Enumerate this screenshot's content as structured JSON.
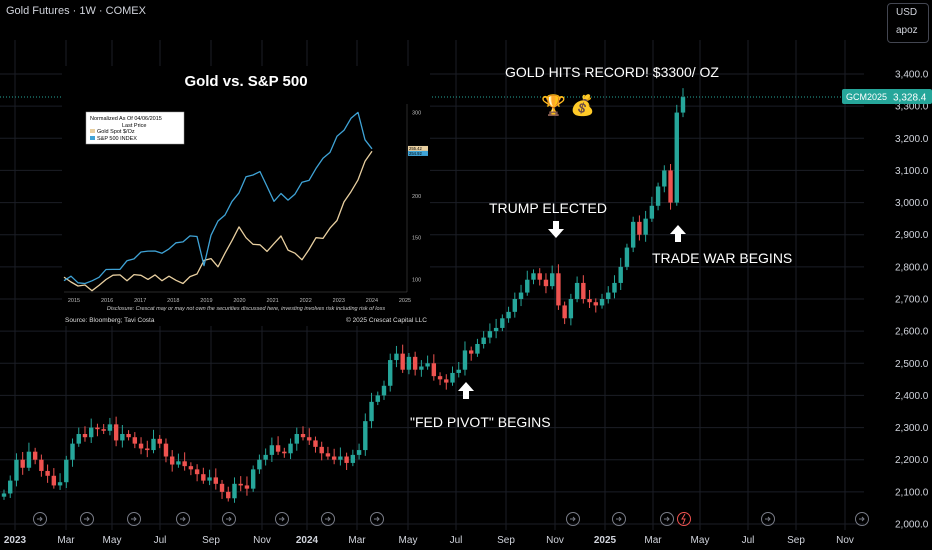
{
  "header": {
    "title": "Gold Futures · 1W · COMEX"
  },
  "currency": {
    "code": "USD",
    "sub": "apoz"
  },
  "price_tag": {
    "symbol": "GCM2025",
    "price": "3,328.4"
  },
  "annotations": {
    "record": "GOLD HITS RECORD! $3300/ OZ",
    "trump": "TRUMP ELECTED",
    "fed": "\"FED PIVOT\" BEGINS",
    "trade_war": "TRADE WAR BEGINS",
    "trophy_icon": "🏆",
    "moneybag_icon": "💰"
  },
  "colors": {
    "up": "#26a69a",
    "down": "#ef5350",
    "accent": "#26a69a",
    "bg": "#000000",
    "grid": "#1b1e26",
    "text": "#d1d4dc"
  },
  "inset": {
    "title": "Gold vs. S&P 500",
    "legend_title": "Normalized As Of 04/06/2015",
    "legend_sub": "Last Price",
    "disclosure": "Disclosure: Crescat may or may not own the securities discussed here, investing involves risk including risk of loss",
    "source": "Source: Bloomberg; Tavi Costa",
    "copyright": "© 2025 Crescat Capital LLC"
  },
  "chart_data": [
    {
      "type": "candlestick",
      "title": "Gold Futures · 1W · COMEX",
      "y_ticks": [
        2000,
        2100,
        2200,
        2300,
        2400,
        2500,
        2600,
        2700,
        2800,
        2900,
        3000,
        3100,
        3200,
        3300,
        3400
      ],
      "y_tick_labels": [
        "2,000.0",
        "2,100.0",
        "2,200.0",
        "2,300.0",
        "2,400.0",
        "2,500.0",
        "2,600.0",
        "2,700.0",
        "2,800.0",
        "2,900.0",
        "3,000.0",
        "3,100.0",
        "3,200.0",
        "3,300.0",
        "3,400.0"
      ],
      "ylim": [
        2000,
        3430
      ],
      "x_labels": [
        "2023",
        "Mar",
        "May",
        "Jul",
        "Sep",
        "Nov",
        "2024",
        "Mar",
        "May",
        "Jul",
        "Sep",
        "Nov",
        "2025",
        "Mar",
        "May",
        "Jul",
        "Sep",
        "Nov"
      ],
      "last_price": 3328.4,
      "closes": [
        2095,
        2135,
        2200,
        2175,
        2225,
        2200,
        2165,
        2150,
        2120,
        2130,
        2200,
        2250,
        2280,
        2270,
        2300,
        2295,
        2290,
        2310,
        2260,
        2280,
        2270,
        2250,
        2235,
        2230,
        2265,
        2250,
        2210,
        2185,
        2195,
        2180,
        2170,
        2155,
        2135,
        2145,
        2125,
        2100,
        2080,
        2125,
        2120,
        2110,
        2170,
        2200,
        2215,
        2245,
        2225,
        2220,
        2250,
        2280,
        2270,
        2260,
        2240,
        2220,
        2210,
        2200,
        2210,
        2190,
        2215,
        2230,
        2320,
        2380,
        2400,
        2430,
        2510,
        2530,
        2480,
        2520,
        2480,
        2490,
        2500,
        2460,
        2450,
        2440,
        2470,
        2480,
        2540,
        2530,
        2560,
        2580,
        2600,
        2610,
        2640,
        2660,
        2700,
        2720,
        2760,
        2780,
        2760,
        2740,
        2780,
        2680,
        2640,
        2700,
        2750,
        2700,
        2690,
        2680,
        2700,
        2720,
        2750,
        2800,
        2860,
        2940,
        2900,
        2950,
        2990,
        3050,
        3100,
        3000,
        3280,
        3328
      ],
      "events": [
        "\"FED PIVOT\" BEGINS",
        "TRUMP ELECTED",
        "TRADE WAR BEGINS",
        "GOLD HITS RECORD! $3300/ OZ"
      ]
    },
    {
      "type": "line",
      "title": "Gold vs. S&P 500",
      "x_labels": [
        "2015",
        "2016",
        "2017",
        "2018",
        "2019",
        "2020",
        "2021",
        "2022",
        "2023",
        "2024",
        "2025"
      ],
      "y_ticks": [
        100,
        150,
        200,
        250,
        300
      ],
      "ylim": [
        85,
        310
      ],
      "series": [
        {
          "name": "Gold Spot $/Oz",
          "color": "#e8cfa0",
          "last_label": "255.42",
          "values": [
            100,
            97,
            95,
            92,
            88,
            90,
            100,
            108,
            104,
            100,
            103,
            105,
            103,
            104,
            100,
            101,
            99,
            98,
            102,
            108,
            120,
            125,
            118,
            130,
            148,
            160,
            150,
            145,
            140,
            135,
            140,
            152,
            138,
            130,
            125,
            133,
            150,
            152,
            160,
            172,
            190,
            205,
            222,
            240,
            255
          ]
        },
        {
          "name": "S&P 500 INDEX",
          "color": "#3fa3d6",
          "last_label": "254.92",
          "values": [
            100,
            101,
            96,
            98,
            97,
            104,
            109,
            112,
            115,
            121,
            126,
            130,
            134,
            137,
            130,
            138,
            141,
            145,
            155,
            150,
            118,
            150,
            170,
            180,
            192,
            205,
            220,
            225,
            232,
            210,
            195,
            200,
            195,
            205,
            215,
            220,
            230,
            245,
            255,
            270,
            280,
            290,
            300,
            270,
            255
          ]
        }
      ]
    }
  ]
}
